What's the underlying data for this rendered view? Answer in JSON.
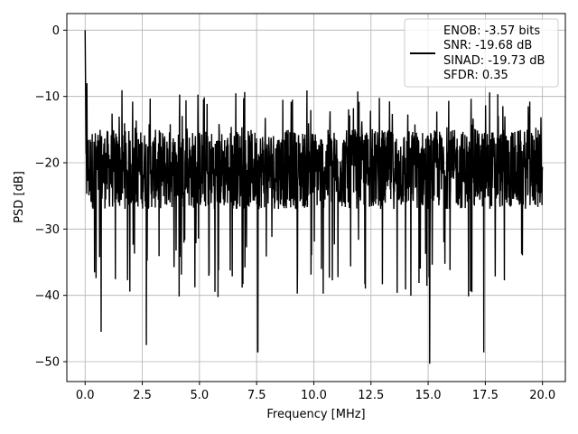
{
  "chart_data": {
    "type": "line",
    "title": "",
    "xlabel": "Frequency [MHz]",
    "ylabel": "PSD [dB]",
    "xlim": [
      -0.8,
      21.0
    ],
    "ylim": [
      -53,
      2.5
    ],
    "xticks": [
      0.0,
      2.5,
      5.0,
      7.5,
      10.0,
      12.5,
      15.0,
      17.5,
      20.0
    ],
    "xtick_labels": [
      "0.0",
      "2.5",
      "5.0",
      "7.5",
      "10.0",
      "12.5",
      "15.0",
      "17.5",
      "20.0"
    ],
    "yticks": [
      0,
      -10,
      -20,
      -30,
      -40,
      -50
    ],
    "ytick_labels": [
      "0",
      "−10",
      "−20",
      "−30",
      "−40",
      "−50"
    ],
    "grid": true,
    "legend_position": "top-right",
    "line_color": "#000000",
    "series": [
      {
        "x": [
          0,
          0.05,
          0.08,
          0.1,
          0.15,
          0.2,
          0.3,
          0.5,
          0.7,
          1.0,
          1.5,
          2.0,
          2.5,
          2.68,
          3.0,
          3.5,
          4.0,
          4.5,
          5.0,
          5.5,
          6.0,
          6.5,
          7.0,
          7.5,
          7.55,
          8.0,
          8.5,
          9.0,
          9.5,
          10.0,
          10.5,
          11.0,
          11.5,
          12.0,
          12.5,
          13.0,
          13.5,
          14.0,
          14.5,
          15.0,
          15.07,
          15.5,
          16.0,
          16.5,
          17.0,
          17.43,
          17.5,
          18.0,
          18.5,
          19.0,
          19.5,
          20.0
        ],
        "y": [
          0,
          -21,
          -8,
          -15,
          -38,
          -14,
          -25,
          -22,
          -45.5,
          -19,
          -24,
          -18,
          -25,
          -47.5,
          -19,
          -22,
          -18,
          -24,
          -19,
          -22,
          -20,
          -23,
          -18,
          -22,
          -48.5,
          -19,
          -22,
          -20,
          -24,
          -19,
          -21,
          -18,
          -23,
          -19,
          -22,
          -20,
          -21,
          -19,
          -23,
          -18,
          -50.3,
          -21,
          -19,
          -23,
          -19,
          -48.6,
          -21,
          -20,
          -23,
          -19,
          -22,
          -21
        ]
      }
    ],
    "legend_lines": [
      "ENOB: -3.57 bits",
      "SNR: -19.68 dB",
      "SINAD: -19.73 dB",
      "SFDR: 0.35"
    ]
  }
}
